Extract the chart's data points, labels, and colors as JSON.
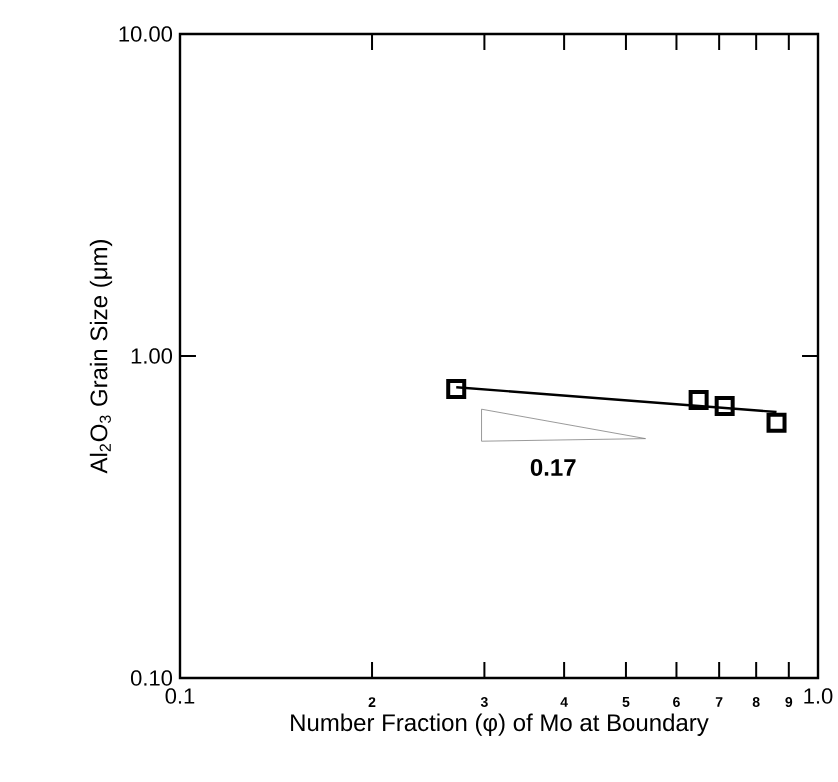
{
  "chart_data": {
    "type": "scatter",
    "log": "xy",
    "xlabel": "Number Fraction (φ) of Mo at Boundary",
    "ylabel": "Al$_{2}$O$_{3}$ Grain Size (μm)",
    "xlim": [
      0.1,
      1.0
    ],
    "ylim": [
      0.1,
      10
    ],
    "xticks": [
      0.1,
      {
        "value": 0.2,
        "label": null
      },
      {
        "value": 0.3,
        "label": null
      },
      {
        "value": 0.4,
        "label": null
      },
      {
        "value": 0.5,
        "label": null
      },
      {
        "value": 0.6,
        "label": null
      },
      {
        "value": 0.7,
        "label": null
      },
      {
        "value": 0.8,
        "label": null
      },
      {
        "value": 0.9,
        "label": null
      },
      {
        "value": 1.0,
        "label": "1.0"
      }
    ],
    "yticks": [
      {
        "value": 0.1,
        "label": "0.10"
      },
      {
        "value": 1,
        "label": "1.00"
      },
      {
        "value": 10,
        "label": "10.00"
      }
    ],
    "series": [
      {
        "type": "scatter",
        "marker": "square",
        "color": "#000000",
        "x": [
          0.271,
          0.65,
          0.714,
          0.861
        ],
        "values": [
          0.79,
          0.73,
          0.7,
          0.62
        ]
      },
      {
        "type": "line",
        "marker": "none",
        "line_style": "solid",
        "color": "#000000",
        "x": [
          0.271,
          0.861
        ],
        "values": [
          0.8,
          0.67
        ]
      }
    ],
    "annotations": [
      "0.17",
      "2",
      "3",
      "4",
      "5",
      "6",
      "7",
      "8",
      "9"
    ]
  }
}
